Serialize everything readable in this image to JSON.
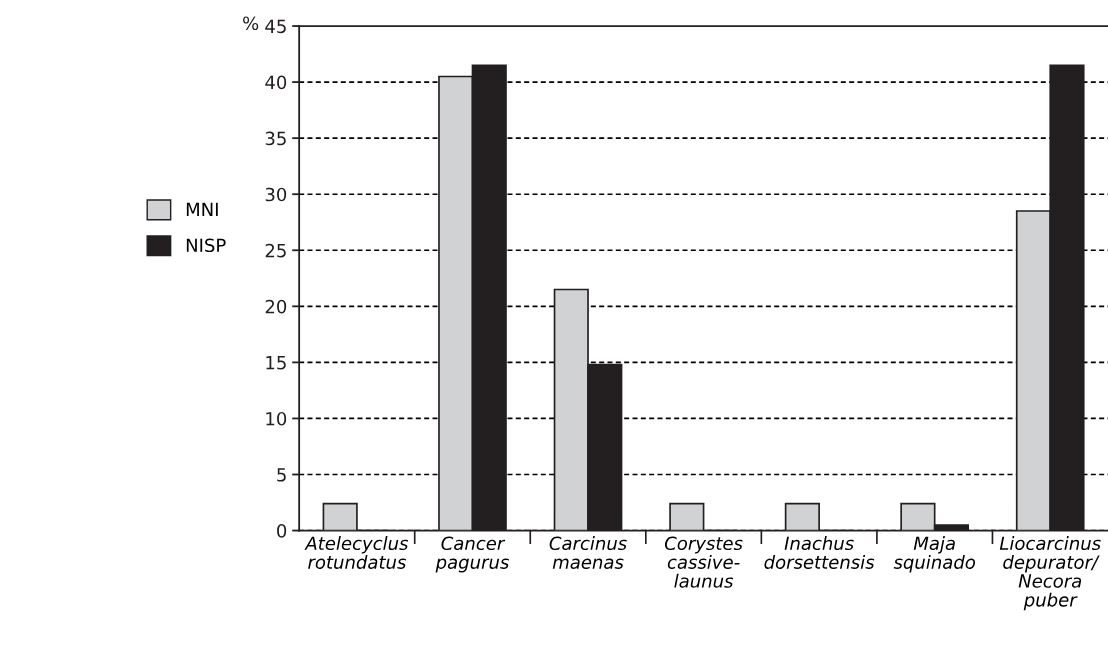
{
  "chart_data": {
    "type": "bar",
    "ylabel": "%",
    "categories": [
      "Atelecyclus\nrotundatus",
      "Cancer\npagurus",
      "Carcinus\nmaenas",
      "Corystes\ncassive-\nlaunus",
      "Inachus\ndorsettensis",
      "Maja\nsquinado",
      "Liocarcinus\ndepurator/\nNecora\npuber"
    ],
    "series": [
      {
        "name": "MNI",
        "color": "#d1d2d4",
        "values": [
          2.4,
          40.5,
          21.5,
          2.4,
          2.4,
          2.4,
          28.5
        ]
      },
      {
        "name": "NISP",
        "color": "#231f20",
        "values": [
          0,
          41.5,
          14.8,
          0,
          0,
          0.5,
          41.5
        ]
      }
    ],
    "ylim": [
      0,
      45
    ],
    "yticks": [
      0,
      5,
      10,
      15,
      20,
      25,
      30,
      35,
      40,
      45
    ],
    "grid": "y",
    "legend": "left"
  }
}
